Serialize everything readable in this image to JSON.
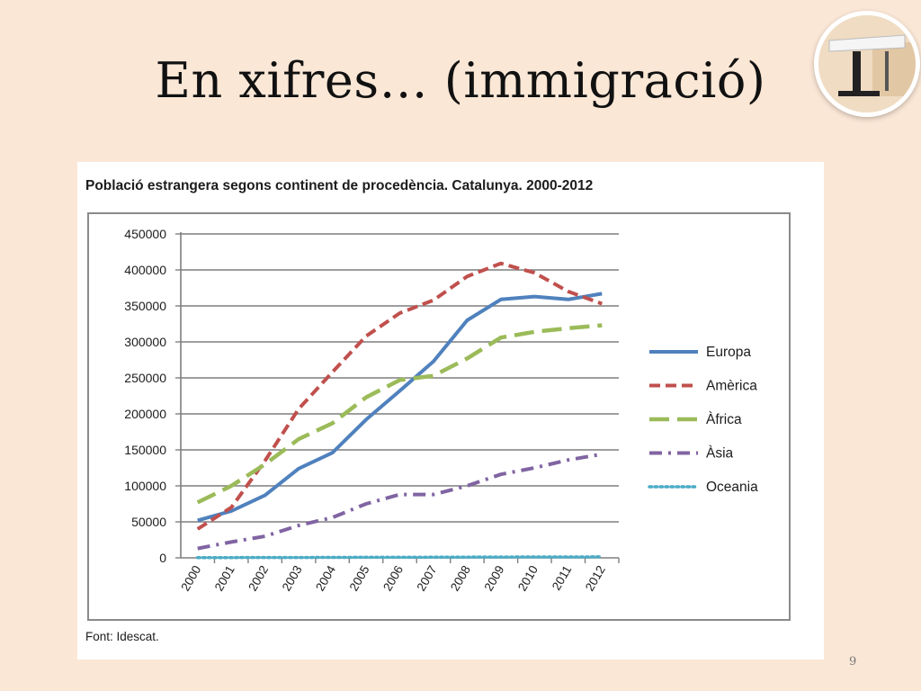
{
  "slide": {
    "title": "En xifres… (immigració)",
    "page_number": "9"
  },
  "logo": {
    "icon": "podium-lectern-icon"
  },
  "colors": {
    "background": "#fbe7d6",
    "grid": "#7f7f7f",
    "europa": "#4f81bd",
    "america": "#c0504d",
    "africa": "#9bbb59",
    "asia": "#8064a2",
    "oceania": "#4bacc6"
  },
  "chart_data": {
    "type": "line",
    "title": "Població estrangera segons continent  de procedència. Catalunya. 2000-2012",
    "source": "Font: Idescat.",
    "x": [
      "2000",
      "2001",
      "2002",
      "2003",
      "2004",
      "2005",
      "2006",
      "2007",
      "2008",
      "2009",
      "2010",
      "2011",
      "2012"
    ],
    "ylim": [
      0,
      450000
    ],
    "yticks": [
      "0",
      "50000",
      "100000",
      "150000",
      "200000",
      "250000",
      "300000",
      "350000",
      "400000",
      "450000"
    ],
    "grid": "horizontal",
    "legend_position": "right",
    "series": [
      {
        "name": "Europa",
        "style": "solid",
        "values": [
          52000,
          65000,
          87000,
          124000,
          146000,
          192000,
          232000,
          273000,
          330000,
          359000,
          363000,
          359000,
          367000
        ]
      },
      {
        "name": "Amèrica",
        "style": "dashed",
        "values": [
          40000,
          70000,
          135000,
          207000,
          258000,
          308000,
          340000,
          358000,
          391000,
          409000,
          396000,
          370000,
          353000
        ]
      },
      {
        "name": "Àfrica",
        "style": "longdash",
        "values": [
          77000,
          100000,
          130000,
          165000,
          187000,
          223000,
          247000,
          253000,
          277000,
          306000,
          314000,
          319000,
          323000
        ]
      },
      {
        "name": "Àsia",
        "style": "dashdot",
        "values": [
          13000,
          22000,
          30000,
          45000,
          56000,
          75000,
          88000,
          88000,
          100000,
          116000,
          125000,
          136000,
          144000
        ]
      },
      {
        "name": "Oceania",
        "style": "dotted",
        "values": [
          400,
          400,
          500,
          500,
          600,
          700,
          800,
          900,
          1000,
          1100,
          1200,
          1300,
          1400
        ]
      }
    ]
  }
}
